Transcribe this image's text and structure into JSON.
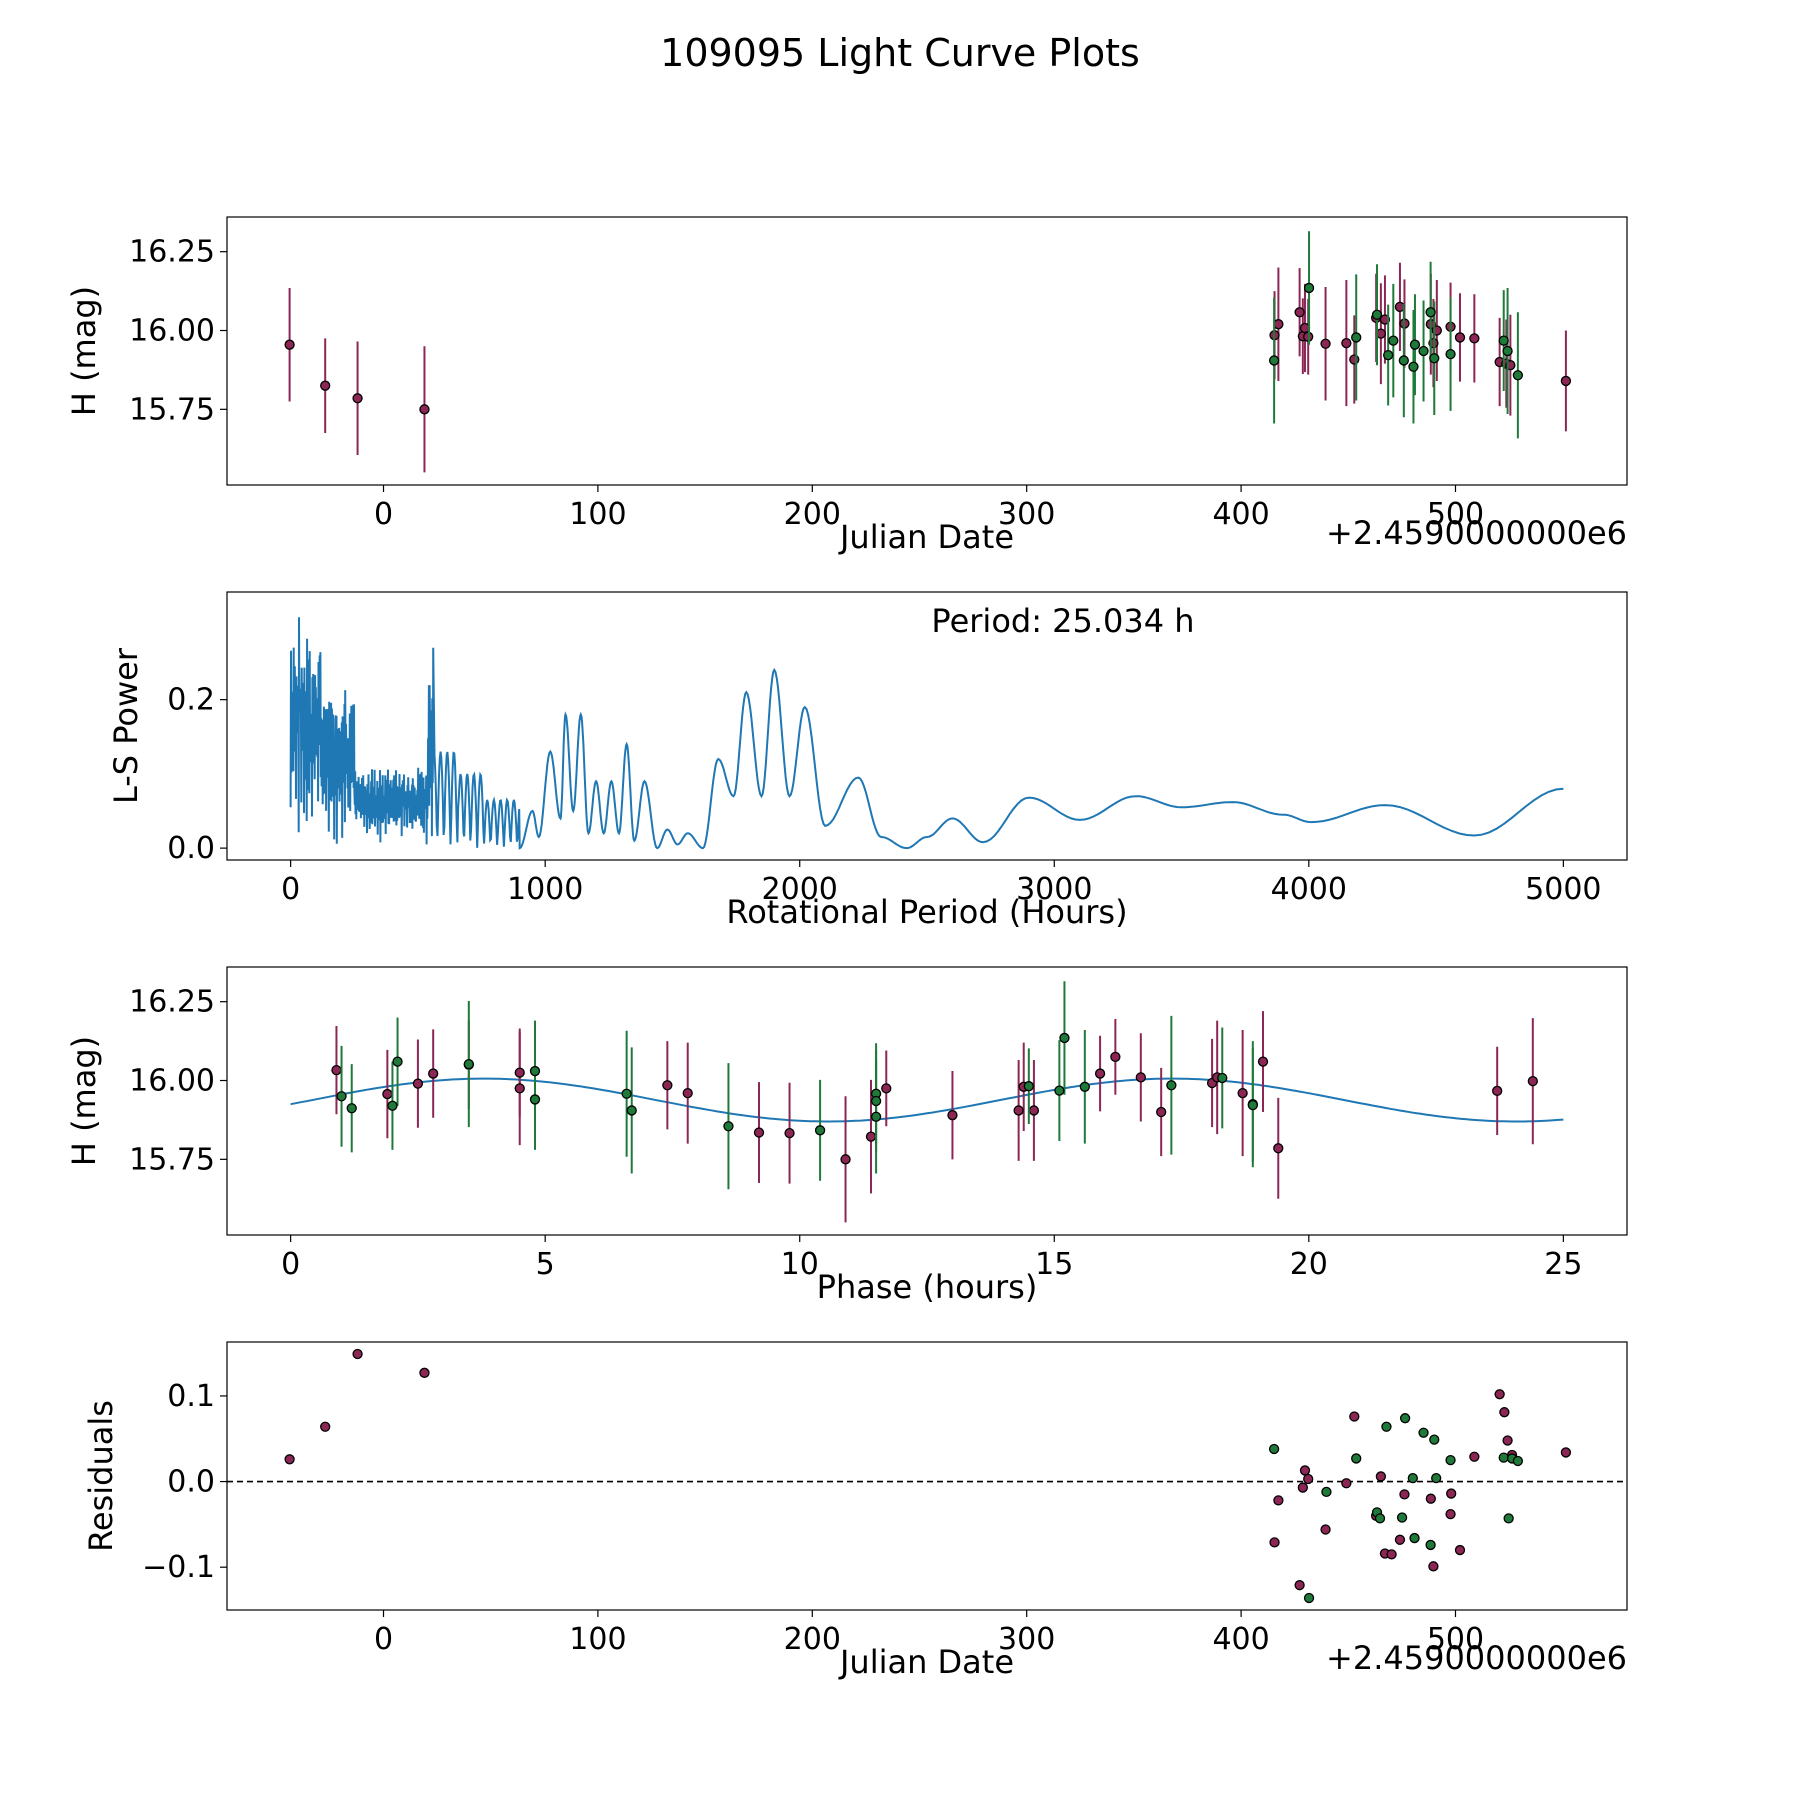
{
  "figure_title": "109095 Light Curve Plots",
  "colors": {
    "red": "#8c2755",
    "green": "#1f7a3a",
    "blue": "#1f77b4",
    "edge": "#000000"
  },
  "chart_data": [
    {
      "id": "lc",
      "type": "scatter",
      "xlabel": "Julian Date",
      "ylabel": "H (mag)",
      "offset_text": "+2.4590000000e6",
      "xlim": [
        -73,
        580
      ],
      "ylim": [
        15.51,
        16.36
      ],
      "xticks": [
        0,
        100,
        200,
        300,
        400,
        500
      ],
      "xtick_labels": [
        "0",
        "100",
        "200",
        "300",
        "400",
        "500"
      ],
      "yticks": [
        15.75,
        16.0,
        16.25
      ],
      "ytick_labels": [
        "15.75",
        "16.00",
        "16.25"
      ],
      "series": [
        {
          "name": "red",
          "color": "#8c2755",
          "points": [
            [
              -43.8,
              15.955,
              0.18
            ],
            [
              -27.2,
              15.825,
              0.15
            ],
            [
              -12.1,
              15.785,
              0.18
            ],
            [
              19.1,
              15.75,
              0.2
            ],
            [
              415.6,
              15.985,
              0.14
            ],
            [
              417.4,
              16.02,
              0.18
            ],
            [
              427.3,
              16.058,
              0.14
            ],
            [
              428.8,
              15.982,
              0.12
            ],
            [
              429.8,
              16.008,
              0.14
            ],
            [
              431.3,
              15.98,
              0.12
            ],
            [
              439.4,
              15.958,
              0.18
            ],
            [
              449.1,
              15.96,
              0.2
            ],
            [
              452.8,
              15.908,
              0.14
            ],
            [
              463.0,
              16.04,
              0.14
            ],
            [
              465.2,
              15.99,
              0.16
            ],
            [
              467.1,
              16.035,
              0.14
            ],
            [
              474.1,
              16.075,
              0.14
            ],
            [
              476.2,
              16.022,
              0.14
            ],
            [
              488.5,
              16.02,
              0.16
            ],
            [
              489.7,
              15.96,
              0.14
            ],
            [
              491.3,
              16.0,
              0.16
            ],
            [
              497.7,
              16.012,
              0.14
            ],
            [
              502.1,
              15.978,
              0.14
            ],
            [
              508.8,
              15.975,
              0.14
            ],
            [
              520.6,
              15.9,
              0.14
            ],
            [
              523.7,
              15.895,
              0.14
            ],
            [
              525.6,
              15.89,
              0.16
            ],
            [
              551.5,
              15.84,
              0.16
            ]
          ]
        },
        {
          "name": "green",
          "color": "#1f7a3a",
          "points": [
            [
              415.4,
              15.905,
              0.2
            ],
            [
              431.7,
              16.135,
              0.18
            ],
            [
              453.7,
              15.978,
              0.2
            ],
            [
              463.4,
              16.05,
              0.16
            ],
            [
              468.6,
              15.922,
              0.16
            ],
            [
              471.0,
              15.968,
              0.18
            ],
            [
              475.9,
              15.905,
              0.18
            ],
            [
              480.4,
              15.885,
              0.18
            ],
            [
              481.1,
              15.955,
              0.16
            ],
            [
              485.1,
              15.935,
              0.16
            ],
            [
              488.4,
              16.058,
              0.16
            ],
            [
              490.1,
              15.912,
              0.18
            ],
            [
              497.7,
              15.925,
              0.18
            ],
            [
              522.5,
              15.968,
              0.16
            ],
            [
              524.3,
              15.935,
              0.2
            ],
            [
              529.1,
              15.858,
              0.2
            ]
          ]
        }
      ]
    },
    {
      "id": "ls",
      "type": "line",
      "xlabel": "Rotational Period (Hours)",
      "ylabel": "L-S Power",
      "annotation": "Period: 25.034 h",
      "xlim": [
        -250,
        5250
      ],
      "ylim": [
        -0.016,
        0.345
      ],
      "xticks": [
        0,
        1000,
        2000,
        3000,
        4000,
        5000
      ],
      "xtick_labels": [
        "0",
        "1000",
        "2000",
        "3000",
        "4000",
        "5000"
      ],
      "yticks": [
        0.0,
        0.2
      ],
      "ytick_labels": [
        "0.0",
        "0.2"
      ],
      "peaks": [
        [
          900,
          0.0
        ],
        [
          950,
          0.05
        ],
        [
          975,
          0.015
        ],
        [
          1020,
          0.13
        ],
        [
          1060,
          0.04
        ],
        [
          1080,
          0.18
        ],
        [
          1110,
          0.05
        ],
        [
          1140,
          0.18
        ],
        [
          1170,
          0.02
        ],
        [
          1200,
          0.09
        ],
        [
          1230,
          0.02
        ],
        [
          1260,
          0.09
        ],
        [
          1290,
          0.02
        ],
        [
          1320,
          0.14
        ],
        [
          1350,
          0.01
        ],
        [
          1390,
          0.09
        ],
        [
          1440,
          0.0
        ],
        [
          1480,
          0.025
        ],
        [
          1520,
          0.005
        ],
        [
          1560,
          0.02
        ],
        [
          1620,
          0.0
        ],
        [
          1680,
          0.12
        ],
        [
          1740,
          0.07
        ],
        [
          1790,
          0.21
        ],
        [
          1850,
          0.07
        ],
        [
          1900,
          0.24
        ],
        [
          1960,
          0.07
        ],
        [
          2020,
          0.19
        ],
        [
          2100,
          0.03
        ],
        [
          2230,
          0.095
        ],
        [
          2320,
          0.015
        ],
        [
          2420,
          0.0
        ],
        [
          2500,
          0.015
        ],
        [
          2600,
          0.04
        ],
        [
          2720,
          0.008
        ],
        [
          2900,
          0.068
        ],
        [
          3100,
          0.038
        ],
        [
          3320,
          0.07
        ],
        [
          3500,
          0.055
        ],
        [
          3700,
          0.062
        ],
        [
          3900,
          0.045
        ],
        [
          4010,
          0.035
        ],
        [
          4300,
          0.058
        ],
        [
          4650,
          0.017
        ],
        [
          5000,
          0.08
        ]
      ]
    },
    {
      "id": "phase",
      "type": "scatter",
      "xlabel": "Phase (hours)",
      "ylabel": "H (mag)",
      "xlim": [
        -1.25,
        26.25
      ],
      "ylim": [
        15.51,
        16.36
      ],
      "xticks": [
        0,
        5,
        10,
        15,
        20,
        25
      ],
      "xtick_labels": [
        "0",
        "5",
        "10",
        "15",
        "20",
        "25"
      ],
      "yticks": [
        15.75,
        16.0,
        16.25
      ],
      "ytick_labels": [
        "15.75",
        "16.00",
        "16.25"
      ],
      "fit": {
        "period": 25.034,
        "mean": 15.938,
        "amplitude": 0.068,
        "peak_phase": 3.8
      },
      "series": [
        {
          "name": "red",
          "color": "#8c2755",
          "points": [
            [
              0.9,
              16.033,
              0.14
            ],
            [
              1.9,
              15.957,
              0.14
            ],
            [
              2.5,
              15.99,
              0.14
            ],
            [
              2.8,
              16.022,
              0.14
            ],
            [
              3.5,
              16.05,
              0.14
            ],
            [
              4.5,
              15.975,
              0.18
            ],
            [
              4.5,
              16.025,
              0.14
            ],
            [
              7.4,
              15.985,
              0.14
            ],
            [
              7.8,
              15.96,
              0.16
            ],
            [
              9.2,
              15.835,
              0.16
            ],
            [
              9.8,
              15.833,
              0.16
            ],
            [
              10.9,
              15.75,
              0.2
            ],
            [
              11.4,
              15.822,
              0.18
            ],
            [
              11.7,
              15.975,
              0.12
            ],
            [
              13.0,
              15.89,
              0.14
            ],
            [
              14.3,
              15.905,
              0.16
            ],
            [
              14.4,
              15.98,
              0.14
            ],
            [
              14.6,
              15.905,
              0.16
            ],
            [
              15.9,
              16.022,
              0.12
            ],
            [
              16.2,
              16.075,
              0.12
            ],
            [
              16.7,
              16.01,
              0.14
            ],
            [
              17.1,
              15.9,
              0.14
            ],
            [
              18.1,
              15.992,
              0.14
            ],
            [
              18.2,
              16.01,
              0.18
            ],
            [
              18.7,
              15.96,
              0.2
            ],
            [
              19.1,
              16.06,
              0.16
            ],
            [
              19.4,
              15.785,
              0.16
            ],
            [
              23.7,
              15.967,
              0.14
            ],
            [
              24.4,
              15.998,
              0.2
            ]
          ]
        },
        {
          "name": "green",
          "color": "#1f7a3a",
          "points": [
            [
              1.0,
              15.95,
              0.16
            ],
            [
              1.2,
              15.912,
              0.14
            ],
            [
              2.0,
              15.92,
              0.14
            ],
            [
              2.1,
              16.06,
              0.14
            ],
            [
              3.5,
              16.052,
              0.2
            ],
            [
              4.8,
              15.94,
              0.16
            ],
            [
              4.8,
              16.03,
              0.16
            ],
            [
              6.6,
              15.958,
              0.2
            ],
            [
              6.7,
              15.905,
              0.2
            ],
            [
              8.6,
              15.855,
              0.2
            ],
            [
              10.4,
              15.842,
              0.16
            ],
            [
              11.5,
              15.958,
              0.16
            ],
            [
              11.5,
              15.935,
              0.16
            ],
            [
              11.5,
              15.885,
              0.18
            ],
            [
              14.5,
              15.982,
              0.12
            ],
            [
              15.1,
              15.968,
              0.16
            ],
            [
              15.2,
              16.135,
              0.18
            ],
            [
              15.6,
              15.98,
              0.18
            ],
            [
              17.3,
              15.985,
              0.22
            ],
            [
              18.3,
              16.008,
              0.16
            ],
            [
              18.9,
              15.925,
              0.2
            ],
            [
              18.9,
              15.922,
              0.18
            ]
          ]
        }
      ]
    },
    {
      "id": "resid",
      "type": "scatter",
      "xlabel": "Julian Date",
      "ylabel": "Residuals",
      "offset_text": "+2.4590000000e6",
      "xlim": [
        -73,
        580
      ],
      "ylim": [
        -0.15,
        0.163
      ],
      "xticks": [
        0,
        100,
        200,
        300,
        400,
        500
      ],
      "xtick_labels": [
        "0",
        "100",
        "200",
        "300",
        "400",
        "500"
      ],
      "yticks": [
        -0.1,
        0.0,
        0.1
      ],
      "ytick_labels": [
        "−0.1",
        "0.0",
        "0.1"
      ],
      "reference_line": 0.0,
      "series": [
        {
          "name": "red",
          "color": "#8c2755",
          "points": [
            [
              -43.8,
              0.026
            ],
            [
              -27.2,
              0.064
            ],
            [
              -12.1,
              0.149
            ],
            [
              19.1,
              0.127
            ],
            [
              415.6,
              -0.071
            ],
            [
              417.4,
              -0.022
            ],
            [
              427.3,
              -0.121
            ],
            [
              428.8,
              -0.007
            ],
            [
              429.8,
              0.013
            ],
            [
              431.3,
              0.003
            ],
            [
              439.4,
              -0.056
            ],
            [
              449.1,
              -0.002
            ],
            [
              452.8,
              0.076
            ],
            [
              463.0,
              -0.04
            ],
            [
              465.2,
              0.006
            ],
            [
              467.1,
              -0.084
            ],
            [
              470.2,
              -0.085
            ],
            [
              474.1,
              -0.068
            ],
            [
              476.2,
              -0.015
            ],
            [
              488.5,
              -0.02
            ],
            [
              489.7,
              -0.099
            ],
            [
              497.7,
              -0.038
            ],
            [
              498.0,
              -0.014
            ],
            [
              502.1,
              -0.08
            ],
            [
              508.8,
              0.029
            ],
            [
              520.6,
              0.102
            ],
            [
              522.8,
              0.081
            ],
            [
              524.3,
              0.048
            ],
            [
              526.4,
              0.031
            ],
            [
              551.5,
              0.034
            ]
          ]
        },
        {
          "name": "green",
          "color": "#1f7a3a",
          "points": [
            [
              415.4,
              0.038
            ],
            [
              431.7,
              -0.136
            ],
            [
              439.8,
              -0.012
            ],
            [
              453.7,
              0.027
            ],
            [
              463.4,
              -0.036
            ],
            [
              464.8,
              -0.043
            ],
            [
              467.8,
              0.064
            ],
            [
              475.1,
              -0.042
            ],
            [
              476.5,
              0.074
            ],
            [
              480.1,
              0.004
            ],
            [
              480.9,
              -0.066
            ],
            [
              485.1,
              0.057
            ],
            [
              488.4,
              -0.074
            ],
            [
              490.1,
              0.049
            ],
            [
              491.0,
              0.004
            ],
            [
              497.7,
              0.025
            ],
            [
              522.5,
              0.028
            ],
            [
              524.8,
              -0.043
            ],
            [
              526.4,
              0.027
            ],
            [
              529.1,
              0.024
            ]
          ]
        }
      ]
    }
  ]
}
